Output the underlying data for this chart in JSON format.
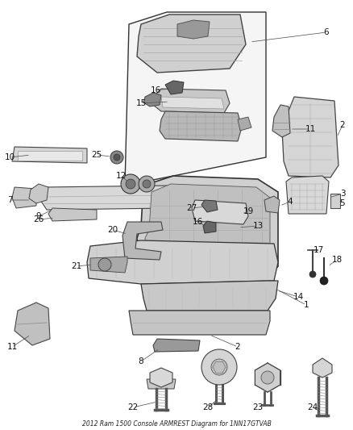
{
  "title": "2012 Ram 1500 Console ARMREST Diagram for 1NN17GTVAB",
  "bg": "#ffffff",
  "fw": 4.38,
  "fh": 5.33,
  "dpi": 100,
  "parts_gray": "#c8c8c8",
  "parts_dark": "#888888",
  "edge_color": "#444444",
  "line_color": "#666666",
  "label_color": "#111111",
  "title_color": "#222222"
}
